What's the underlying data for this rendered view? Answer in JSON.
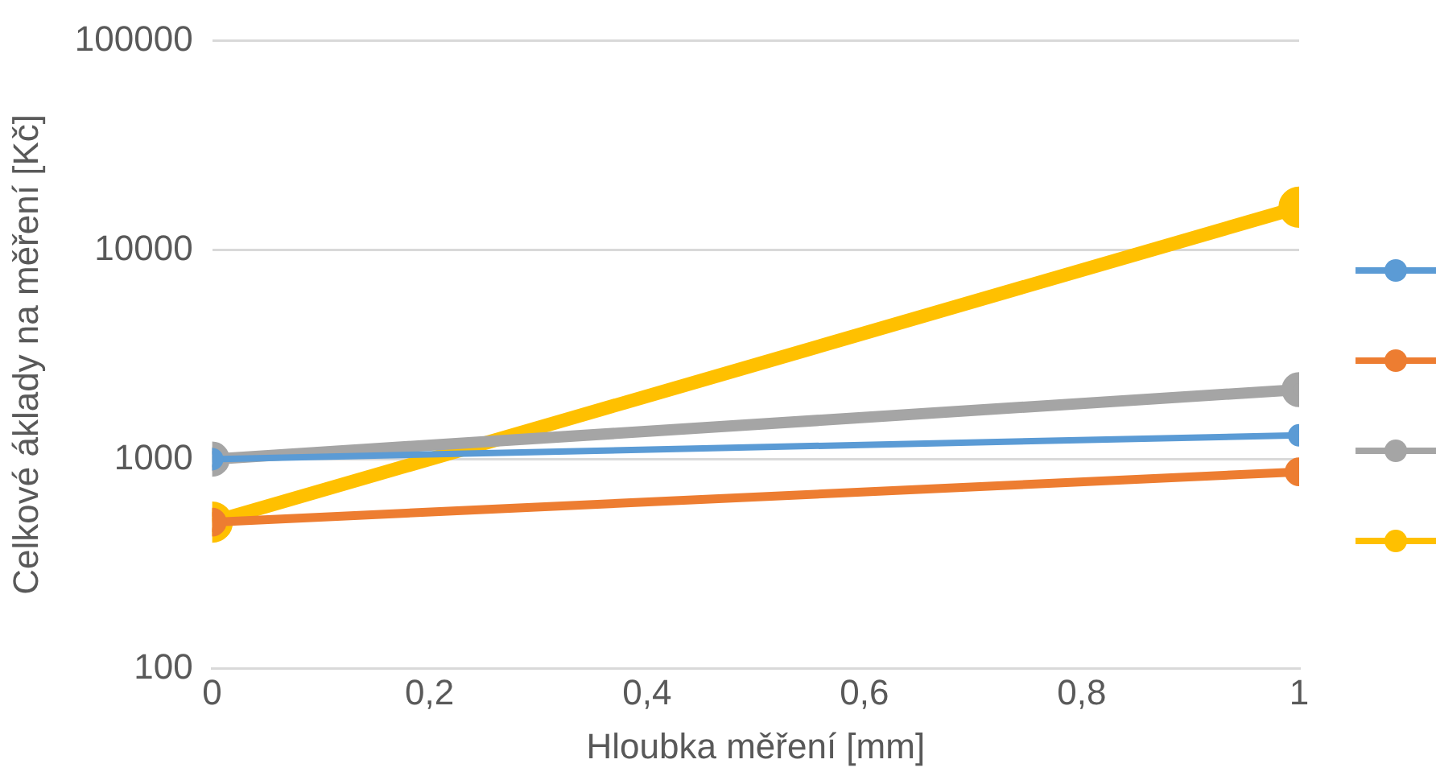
{
  "chart_data": {
    "type": "line",
    "xlabel": "Hloubka měření [mm]",
    "ylabel": "Celkové áklady na měření [Kč]",
    "x": [
      0,
      1
    ],
    "series": [
      {
        "color": "#5b9bd5",
        "values": [
          1000,
          1300
        ]
      },
      {
        "color": "#ed7d31",
        "values": [
          500,
          870
        ]
      },
      {
        "color": "#a5a5a5",
        "values": [
          1000,
          2150
        ]
      },
      {
        "color": "#ffc000",
        "values": [
          500,
          16000
        ]
      }
    ],
    "xlim": [
      0,
      1
    ],
    "xticks": [
      0,
      {
        "value": 0.2,
        "label": "0,2"
      },
      {
        "value": 0.4,
        "label": "0,4"
      },
      {
        "value": 0.6,
        "label": "0,6"
      },
      {
        "value": 0.8,
        "label": "0,8"
      },
      1
    ],
    "ylim": [
      100,
      100000
    ],
    "yticks": [
      100,
      1000,
      10000,
      100000
    ],
    "log": "y",
    "grid": "y",
    "marker": "circle",
    "line_style": "solid"
  }
}
